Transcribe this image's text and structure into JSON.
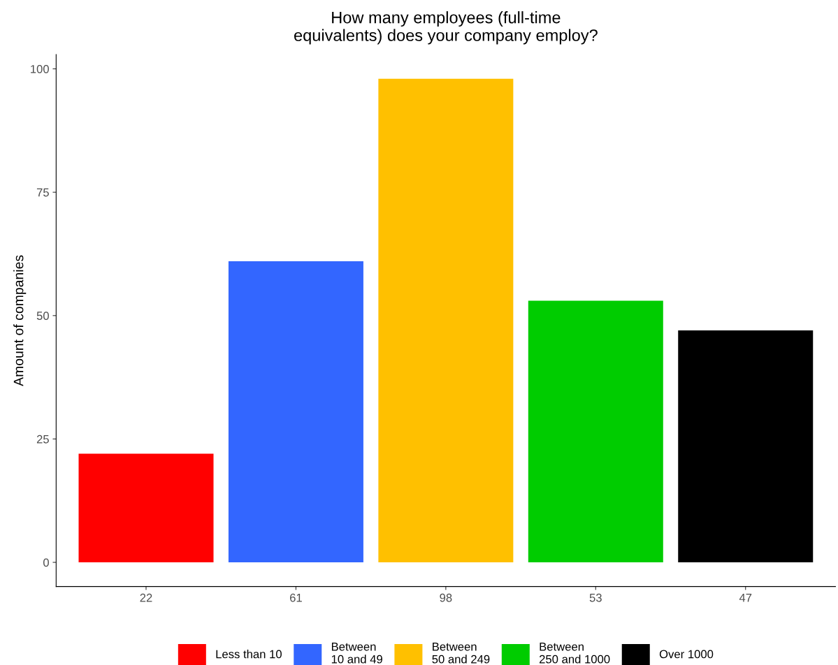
{
  "chart_data": {
    "type": "bar",
    "title": "How many employees (full-time\nequivalents) does your company employ?",
    "ylabel": "Amount of companies",
    "categories": [
      "22",
      "61",
      "98",
      "53",
      "47"
    ],
    "series": [
      {
        "name": "Less than 10",
        "color": "#ff0000",
        "values": [
          22,
          null,
          null,
          null,
          null
        ]
      },
      {
        "name": "Between\n10 and 49",
        "color": "#3366ff",
        "values": [
          null,
          61,
          null,
          null,
          null
        ]
      },
      {
        "name": "Between\n50 and 249",
        "color": "#ffc000",
        "values": [
          null,
          null,
          98,
          null,
          null
        ]
      },
      {
        "name": "Between\n250 and 1000",
        "color": "#00cc00",
        "values": [
          null,
          null,
          null,
          53,
          null
        ]
      },
      {
        "name": "Over 1000",
        "color": "#000000",
        "values": [
          null,
          null,
          null,
          null,
          47
        ]
      }
    ],
    "ylim": [
      -4.9,
      102.9
    ],
    "yticks": [
      0,
      25,
      50,
      75,
      100
    ],
    "grid": false,
    "legend": "bottom"
  }
}
